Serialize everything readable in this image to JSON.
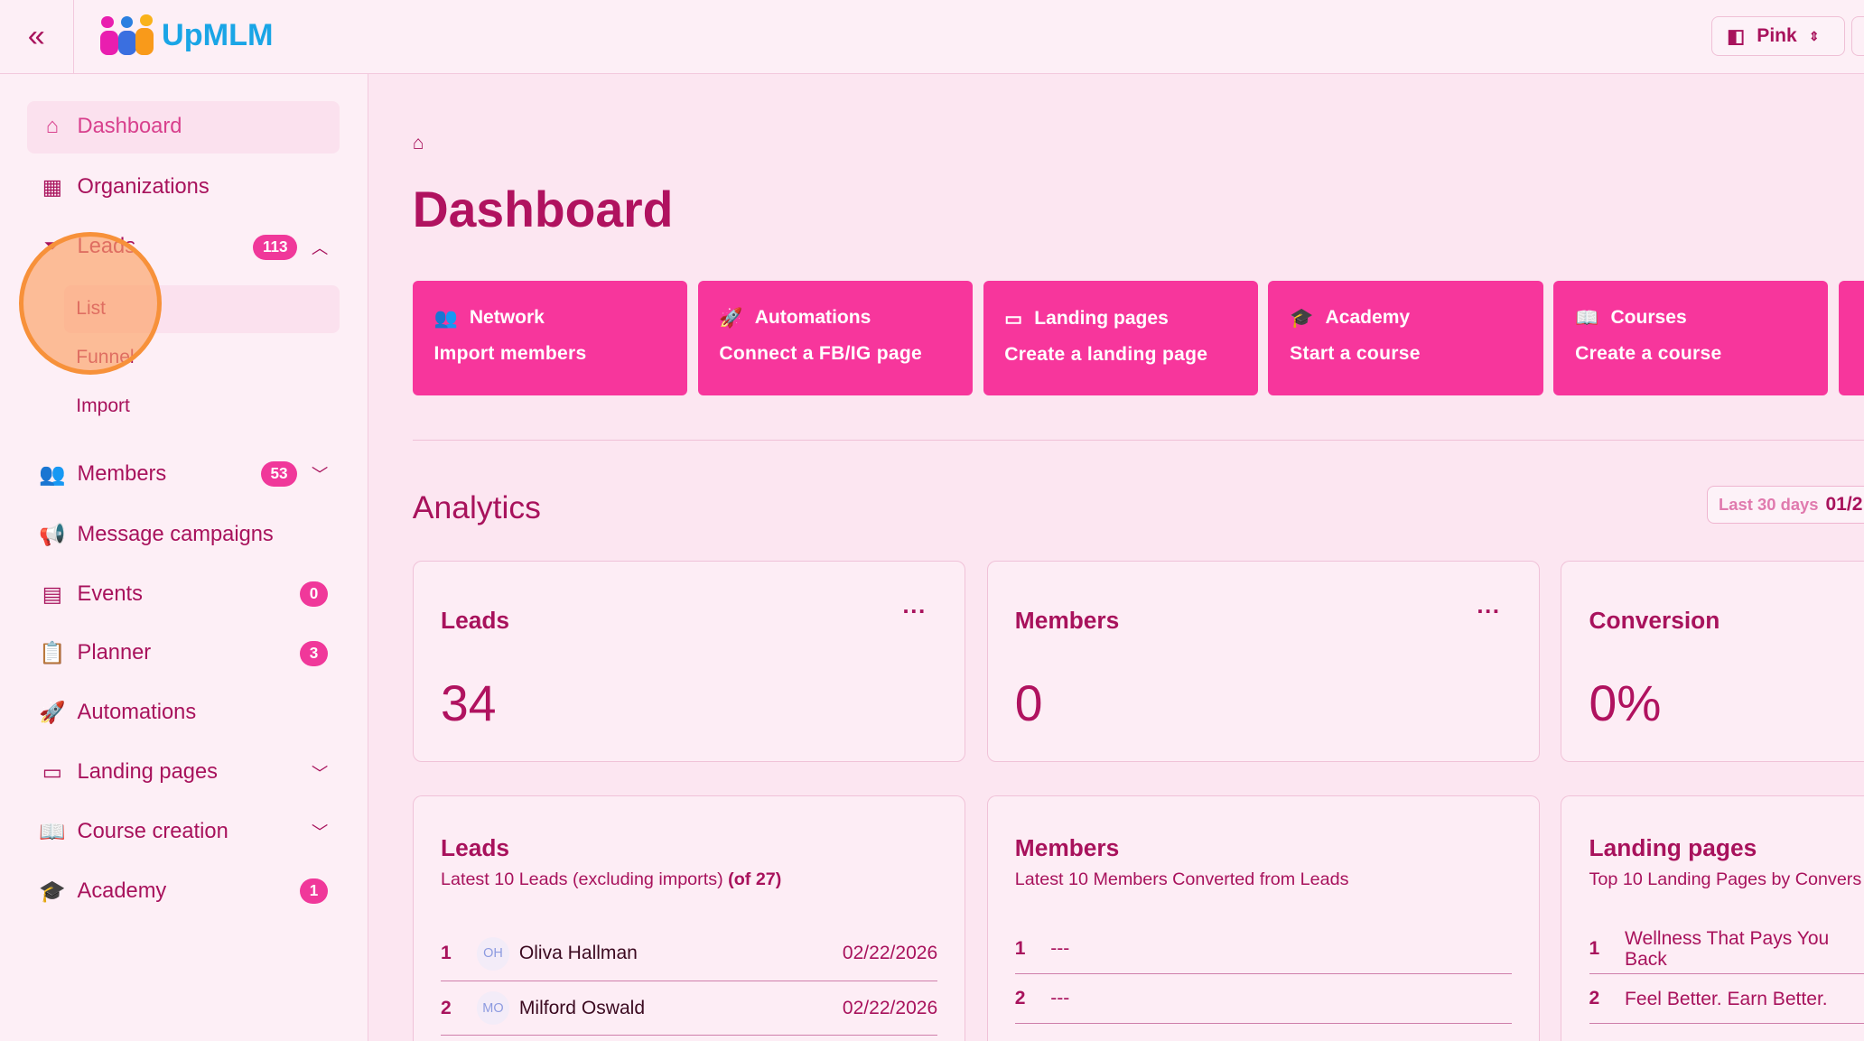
{
  "header": {
    "brand": "UpMLM",
    "theme_label": "Pink"
  },
  "sidebar": {
    "items": [
      {
        "label": "Dashboard",
        "icon": "home-icon"
      },
      {
        "label": "Organizations",
        "icon": "building-icon"
      },
      {
        "label": "Leads",
        "icon": "funnel-icon",
        "badge": "113",
        "sub": [
          "List",
          "Funnel",
          "Import"
        ]
      },
      {
        "label": "Members",
        "icon": "users-icon",
        "badge": "53"
      },
      {
        "label": "Message campaigns",
        "icon": "megaphone-icon"
      },
      {
        "label": "Events",
        "icon": "calendar-icon",
        "badge": "0"
      },
      {
        "label": "Planner",
        "icon": "clipboard-icon",
        "badge": "3"
      },
      {
        "label": "Automations",
        "icon": "rocket-icon"
      },
      {
        "label": "Landing pages",
        "icon": "monitor-icon"
      },
      {
        "label": "Course creation",
        "icon": "book-icon"
      },
      {
        "label": "Academy",
        "icon": "graduation-cap-icon",
        "badge": "1"
      }
    ]
  },
  "main": {
    "title": "Dashboard",
    "quick_actions": [
      {
        "title": "Network",
        "action": "Import members"
      },
      {
        "title": "Automations",
        "action": "Connect a FB/IG page"
      },
      {
        "title": "Landing pages",
        "action": "Create a landing page"
      },
      {
        "title": "Academy",
        "action": "Start a course"
      },
      {
        "title": "Courses",
        "action": "Create a course"
      }
    ],
    "analytics_title": "Analytics",
    "range_label": "Last 30 days",
    "range_value": "01/2",
    "stats": [
      {
        "label": "Leads",
        "value": "34"
      },
      {
        "label": "Members",
        "value": "0"
      },
      {
        "label": "Conversion",
        "value": "0%"
      }
    ],
    "lists": {
      "leads": {
        "title": "Leads",
        "desc": "Latest 10 Leads (excluding imports)",
        "count": "(of 27)",
        "rows": [
          {
            "n": "1",
            "initials": "OH",
            "name": "Oliva Hallman",
            "date": "02/22/2026"
          },
          {
            "n": "2",
            "initials": "MO",
            "name": "Milford Oswald",
            "date": "02/22/2026"
          }
        ]
      },
      "members": {
        "title": "Members",
        "desc": "Latest 10 Members Converted from Leads",
        "rows": [
          {
            "n": "1",
            "name": "---"
          },
          {
            "n": "2",
            "name": "---"
          }
        ]
      },
      "landing": {
        "title": "Landing pages",
        "desc": "Top 10 Landing Pages by Convers",
        "rows": [
          {
            "n": "1",
            "name": "Wellness That Pays You Back"
          },
          {
            "n": "2",
            "name": "Feel Better. Earn Better."
          }
        ]
      }
    }
  },
  "colors": {
    "accent": "#f7369c",
    "text": "#a8125c",
    "background": "#fce6f1"
  }
}
